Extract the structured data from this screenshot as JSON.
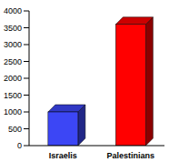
{
  "chart_data": {
    "type": "bar",
    "categories": [
      "Israelis",
      "Palestinians"
    ],
    "values": [
      1000,
      3600
    ],
    "colors": [
      "#3c46f5",
      "#ff0000"
    ],
    "ylim": [
      0,
      4000
    ],
    "yticks": [
      0,
      500,
      1000,
      1500,
      2000,
      2500,
      3000,
      3500,
      4000
    ],
    "grid": false
  }
}
